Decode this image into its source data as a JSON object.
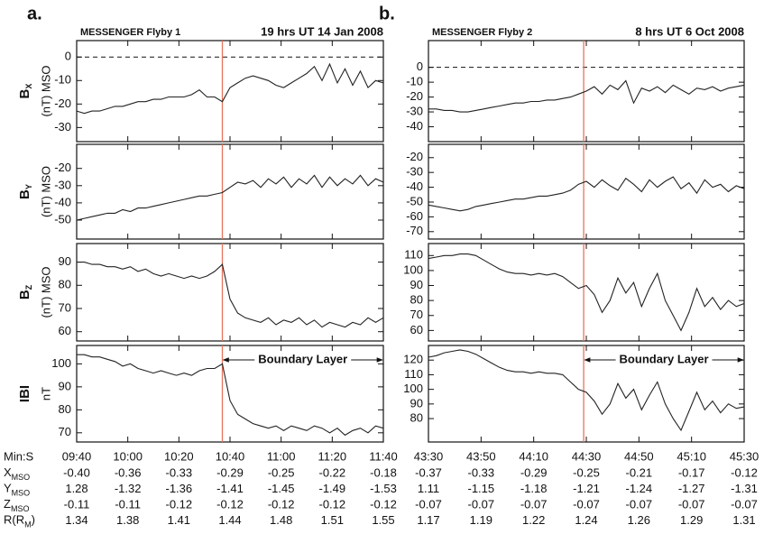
{
  "chart_data": [
    {
      "type": "line",
      "panel_label": "a.",
      "title": "MESSENGER Flyby 1",
      "subtitle": "19 hrs UT 14 Jan 2008",
      "ylabel": [
        {
          "text": "B"
        },
        {
          "text": "X",
          "sub": true
        }
      ],
      "ylabel2": "(nT) MSO",
      "x": [
        580,
        583,
        586,
        589,
        592,
        595,
        598,
        601,
        604,
        607,
        610,
        613,
        616,
        619,
        622,
        625,
        628,
        631,
        634,
        637,
        640,
        643,
        646,
        649,
        652,
        655,
        658,
        661,
        664,
        667,
        670,
        673,
        676,
        679,
        682,
        685,
        688,
        691,
        694,
        697,
        700
      ],
      "values": [
        -23,
        -24,
        -23,
        -23,
        -22,
        -21,
        -21,
        -20,
        -19,
        -19,
        -18,
        -18,
        -17,
        -17,
        -17,
        -16,
        -14,
        -17,
        -17,
        -19,
        -13,
        -11,
        -9,
        -8,
        -9,
        -10,
        -12,
        -13,
        -11,
        -9,
        -7,
        -4,
        -10,
        -3,
        -11,
        -5,
        -12,
        -6,
        -13,
        -10,
        -11
      ],
      "color": "#222222",
      "xlim": [
        580,
        700
      ],
      "ylim": [
        -36,
        7
      ],
      "yticks": [
        0,
        -10,
        -20,
        -30
      ],
      "reference_y": 0,
      "boundary_x": 637,
      "boundary_color": "#e8735a"
    },
    {
      "type": "line",
      "ylabel": [
        {
          "text": "B"
        },
        {
          "text": "Y",
          "sub": true
        }
      ],
      "ylabel2": "(nT) MSO",
      "x": [
        580,
        583,
        586,
        589,
        592,
        595,
        598,
        601,
        604,
        607,
        610,
        613,
        616,
        619,
        622,
        625,
        628,
        631,
        634,
        637,
        640,
        643,
        646,
        649,
        652,
        655,
        658,
        661,
        664,
        667,
        670,
        673,
        676,
        679,
        682,
        685,
        688,
        691,
        694,
        697,
        700
      ],
      "values": [
        -50,
        -49,
        -48,
        -47,
        -46,
        -46,
        -44,
        -45,
        -43,
        -43,
        -42,
        -41,
        -40,
        -39,
        -38,
        -37,
        -36,
        -36,
        -35,
        -34,
        -31,
        -28,
        -29,
        -27,
        -31,
        -26,
        -29,
        -25,
        -31,
        -26,
        -29,
        -24,
        -31,
        -25,
        -30,
        -26,
        -29,
        -24,
        -30,
        -26,
        -28
      ],
      "color": "#222222",
      "xlim": [
        580,
        700
      ],
      "ylim": [
        -61,
        -6
      ],
      "yticks": [
        -20,
        -30,
        -40,
        -50
      ],
      "boundary_x": 637,
      "boundary_color": "#e8735a"
    },
    {
      "type": "line",
      "ylabel": [
        {
          "text": "B"
        },
        {
          "text": "Z",
          "sub": true
        }
      ],
      "ylabel2": "(nT) MSO",
      "x": [
        580,
        583,
        586,
        589,
        592,
        595,
        598,
        601,
        604,
        607,
        610,
        613,
        616,
        619,
        622,
        625,
        628,
        631,
        634,
        637,
        640,
        643,
        646,
        649,
        652,
        655,
        658,
        661,
        664,
        667,
        670,
        673,
        676,
        679,
        682,
        685,
        688,
        691,
        694,
        697,
        700
      ],
      "values": [
        90,
        90,
        89,
        89,
        88,
        88,
        87,
        88,
        86,
        87,
        85,
        84,
        85,
        84,
        83,
        84,
        83,
        84,
        86,
        89,
        74,
        68,
        66,
        65,
        64,
        66,
        63,
        65,
        64,
        66,
        63,
        65,
        62,
        64,
        63,
        62,
        64,
        63,
        66,
        64,
        66
      ],
      "color": "#222222",
      "xlim": [
        580,
        700
      ],
      "ylim": [
        56,
        98
      ],
      "yticks": [
        90,
        80,
        70,
        60
      ],
      "boundary_x": 637,
      "boundary_color": "#e8735a"
    },
    {
      "type": "line",
      "ylabel": [
        {
          "text": "IBI"
        }
      ],
      "ylabel2": "nT",
      "x": [
        580,
        583,
        586,
        589,
        592,
        595,
        598,
        601,
        604,
        607,
        610,
        613,
        616,
        619,
        622,
        625,
        628,
        631,
        634,
        637,
        640,
        643,
        646,
        649,
        652,
        655,
        658,
        661,
        664,
        667,
        670,
        673,
        676,
        679,
        682,
        685,
        688,
        691,
        694,
        697,
        700
      ],
      "values": [
        104,
        104,
        103,
        103,
        102,
        101,
        99,
        100,
        98,
        97,
        96,
        97,
        96,
        95,
        96,
        95,
        97,
        98,
        98,
        100,
        84,
        78,
        76,
        74,
        73,
        72,
        73,
        71,
        73,
        72,
        71,
        73,
        72,
        70,
        72,
        69,
        71,
        72,
        70,
        73,
        72
      ],
      "color": "#222222",
      "xlim": [
        580,
        700
      ],
      "ylim": [
        66,
        108
      ],
      "yticks": [
        100,
        90,
        80,
        70
      ],
      "boundary_x": 637,
      "boundary_color": "#e8735a",
      "annotation": "Boundary Layer",
      "xticks": [
        {
          "value": 580,
          "label": "09:40"
        },
        {
          "value": 600,
          "label": "10:00"
        },
        {
          "value": 620,
          "label": "10:20"
        },
        {
          "value": 640,
          "label": "10:40"
        },
        {
          "value": 660,
          "label": "11:00"
        },
        {
          "value": 680,
          "label": "11:20"
        },
        {
          "value": 700,
          "label": "11:40"
        }
      ],
      "tick_row_label": "Min:S",
      "ephemeris": [
        {
          "label": [
            {
              "text": "X"
            },
            {
              "text": "MSO",
              "sub": true
            }
          ],
          "values": [
            "-0.40",
            "-0.36",
            "-0.33",
            "-0.29",
            "-0.25",
            "-0.22",
            "-0.18"
          ]
        },
        {
          "label": [
            {
              "text": "Y"
            },
            {
              "text": "MSO",
              "sub": true
            }
          ],
          "values": [
            "1.28",
            "-1.32",
            "-1.36",
            "-1.41",
            "-1.45",
            "-1.49",
            "-1.53"
          ]
        },
        {
          "label": [
            {
              "text": "Z"
            },
            {
              "text": "MSO",
              "sub": true
            }
          ],
          "values": [
            "-0.11",
            "-0.11",
            "-0.12",
            "-0.12",
            "-0.12",
            "-0.12",
            "-0.12"
          ]
        },
        {
          "label": [
            {
              "text": "R(R"
            },
            {
              "text": "M",
              "sub": true
            },
            {
              "text": ")"
            }
          ],
          "values": [
            "1.34",
            "1.38",
            "1.41",
            "1.44",
            "1.48",
            "1.51",
            "1.55"
          ]
        }
      ]
    },
    {
      "type": "line",
      "panel_label": "b.",
      "title": "MESSENGER Flyby 2",
      "subtitle": "8 hrs UT 6 Oct 2008",
      "x": [
        2610,
        2613,
        2616,
        2619,
        2622,
        2625,
        2628,
        2631,
        2634,
        2637,
        2640,
        2643,
        2646,
        2649,
        2652,
        2655,
        2658,
        2661,
        2664,
        2667,
        2670,
        2673,
        2676,
        2679,
        2682,
        2685,
        2688,
        2691,
        2694,
        2697,
        2700,
        2703,
        2706,
        2709,
        2712,
        2715,
        2718,
        2721,
        2724,
        2727,
        2730
      ],
      "values": [
        -28,
        -28,
        -29,
        -29,
        -30,
        -30,
        -29,
        -28,
        -27,
        -26,
        -25,
        -24,
        -24,
        -23,
        -23,
        -22,
        -22,
        -21,
        -20,
        -18,
        -16,
        -13,
        -18,
        -12,
        -15,
        -9,
        -24,
        -14,
        -16,
        -13,
        -17,
        -12,
        -15,
        -18,
        -14,
        -15,
        -13,
        -16,
        -14,
        -13,
        -12
      ],
      "color": "#222222",
      "xlim": [
        2610,
        2730
      ],
      "ylim": [
        -50,
        18
      ],
      "yticks": [
        0,
        -10,
        -20,
        -30,
        -40
      ],
      "reference_y": 0,
      "boundary_x": 2669,
      "boundary_color": "#e8735a"
    },
    {
      "type": "line",
      "x": [
        2610,
        2613,
        2616,
        2619,
        2622,
        2625,
        2628,
        2631,
        2634,
        2637,
        2640,
        2643,
        2646,
        2649,
        2652,
        2655,
        2658,
        2661,
        2664,
        2667,
        2670,
        2673,
        2676,
        2679,
        2682,
        2685,
        2688,
        2691,
        2694,
        2697,
        2700,
        2703,
        2706,
        2709,
        2712,
        2715,
        2718,
        2721,
        2724,
        2727,
        2730
      ],
      "values": [
        -52,
        -53,
        -54,
        -55,
        -56,
        -55,
        -53,
        -52,
        -51,
        -50,
        -49,
        -48,
        -48,
        -47,
        -46,
        -46,
        -45,
        -44,
        -42,
        -38,
        -36,
        -40,
        -35,
        -39,
        -42,
        -34,
        -38,
        -43,
        -35,
        -40,
        -36,
        -33,
        -41,
        -37,
        -44,
        -35,
        -40,
        -38,
        -43,
        -39,
        -41
      ],
      "color": "#222222",
      "xlim": [
        2610,
        2730
      ],
      "ylim": [
        -75,
        -11
      ],
      "yticks": [
        -20,
        -30,
        -40,
        -50,
        -60,
        -70
      ],
      "boundary_x": 2669,
      "boundary_color": "#e8735a"
    },
    {
      "type": "line",
      "x": [
        2610,
        2613,
        2616,
        2619,
        2622,
        2625,
        2628,
        2631,
        2634,
        2637,
        2640,
        2643,
        2646,
        2649,
        2652,
        2655,
        2658,
        2661,
        2664,
        2667,
        2670,
        2673,
        2676,
        2679,
        2682,
        2685,
        2688,
        2691,
        2694,
        2697,
        2700,
        2703,
        2706,
        2709,
        2712,
        2715,
        2718,
        2721,
        2724,
        2727,
        2730
      ],
      "values": [
        108,
        109,
        110,
        110,
        111,
        111,
        110,
        107,
        104,
        101,
        99,
        98,
        98,
        97,
        98,
        97,
        98,
        96,
        92,
        88,
        90,
        84,
        72,
        80,
        95,
        85,
        92,
        76,
        88,
        98,
        80,
        70,
        60,
        72,
        88,
        76,
        82,
        74,
        80,
        76,
        78
      ],
      "color": "#222222",
      "xlim": [
        2610,
        2730
      ],
      "ylim": [
        53,
        118
      ],
      "yticks": [
        110,
        100,
        90,
        80,
        70,
        60
      ],
      "boundary_x": 2669,
      "boundary_color": "#e8735a"
    },
    {
      "type": "line",
      "x": [
        2610,
        2613,
        2616,
        2619,
        2622,
        2625,
        2628,
        2631,
        2634,
        2637,
        2640,
        2643,
        2646,
        2649,
        2652,
        2655,
        2658,
        2661,
        2664,
        2667,
        2670,
        2673,
        2676,
        2679,
        2682,
        2685,
        2688,
        2691,
        2694,
        2697,
        2700,
        2703,
        2706,
        2709,
        2712,
        2715,
        2718,
        2721,
        2724,
        2727,
        2730
      ],
      "values": [
        122,
        123,
        125,
        126,
        127,
        126,
        124,
        121,
        118,
        115,
        113,
        112,
        112,
        111,
        112,
        111,
        111,
        110,
        105,
        100,
        98,
        92,
        83,
        90,
        104,
        94,
        100,
        86,
        96,
        105,
        90,
        80,
        72,
        85,
        98,
        86,
        92,
        84,
        90,
        87,
        88
      ],
      "color": "#222222",
      "xlim": [
        2610,
        2730
      ],
      "ylim": [
        64,
        130
      ],
      "yticks": [
        120,
        110,
        100,
        90,
        80
      ],
      "boundary_x": 2669,
      "boundary_color": "#e8735a",
      "annotation": "Boundary Layer",
      "xticks": [
        {
          "value": 2610,
          "label": "43:30"
        },
        {
          "value": 2630,
          "label": "43:50"
        },
        {
          "value": 2650,
          "label": "44:10"
        },
        {
          "value": 2670,
          "label": "44:30"
        },
        {
          "value": 2690,
          "label": "44:50"
        },
        {
          "value": 2710,
          "label": "45:10"
        },
        {
          "value": 2730,
          "label": "45:30"
        }
      ],
      "ephemeris": [
        {
          "values": [
            "-0.37",
            "-0.33",
            "-0.29",
            "-0.25",
            "-0.21",
            "-0.17",
            "-0.12"
          ]
        },
        {
          "values": [
            "1.11",
            "-1.15",
            "-1.18",
            "-1.21",
            "-1.24",
            "-1.27",
            "-1.31"
          ]
        },
        {
          "values": [
            "-0.07",
            "-0.07",
            "-0.07",
            "-0.07",
            "-0.07",
            "-0.07",
            "-0.07"
          ]
        },
        {
          "values": [
            "1.17",
            "1.19",
            "1.22",
            "1.24",
            "1.26",
            "1.29",
            "1.31"
          ]
        }
      ]
    }
  ]
}
